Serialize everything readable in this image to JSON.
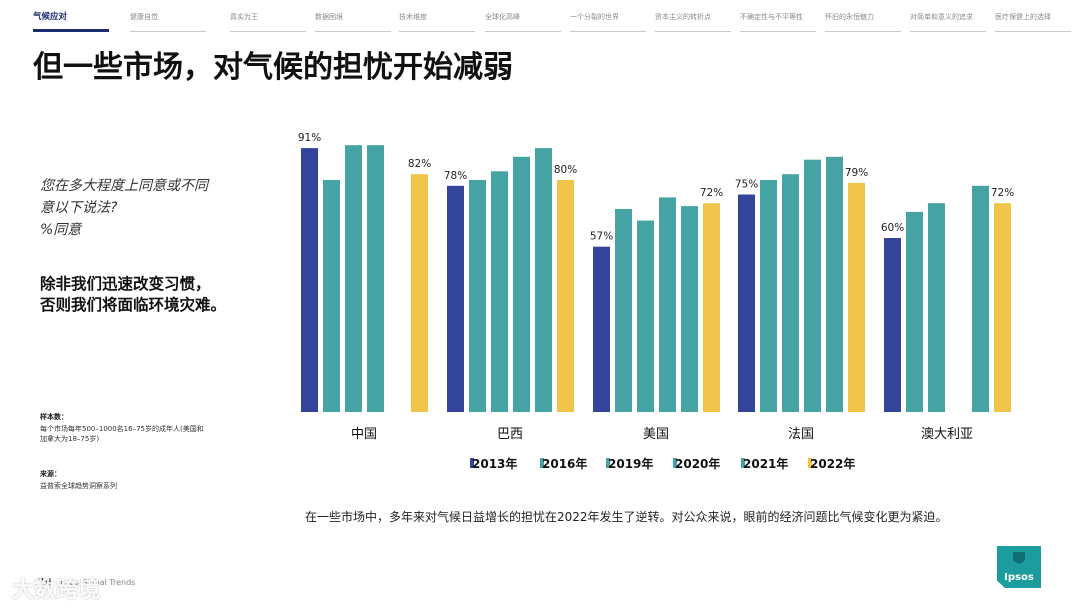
{
  "nav": {
    "items": [
      {
        "label": "气候应对",
        "active": true
      },
      {
        "label": "健康自觉",
        "active": false
      },
      {
        "label": "真实为王",
        "active": false
      },
      {
        "label": "数据困境",
        "active": false
      },
      {
        "label": "技术维度",
        "active": false
      },
      {
        "label": "全球化高峰",
        "active": false
      },
      {
        "label": "一个分裂的世界",
        "active": false
      },
      {
        "label": "资本主义的转折点",
        "active": false
      },
      {
        "label": "不确定性与不平等性",
        "active": false
      },
      {
        "label": "怀旧的永恒魅力",
        "active": false
      },
      {
        "label": "对简单和意义的追求",
        "active": false
      },
      {
        "label": "医疗保健上的选择",
        "active": false
      }
    ]
  },
  "title": "但一些市场，对气候的担忧开始减弱",
  "question": {
    "lines": [
      "您在多大程度上同意或不同",
      "意以下说法?",
      "%同意"
    ]
  },
  "statement": {
    "lines": [
      "除非我们迅速改变习惯，",
      "否则我们将面临环境灾难。"
    ]
  },
  "sample": {
    "label": "样本数：",
    "lines": [
      "每个市场每年500–1000名16–75岁的成年人(美国和",
      "加拿大为18–75岁)"
    ]
  },
  "source": {
    "label": "来源：",
    "text": "益普索全球趋势洞察系列"
  },
  "caption": "在一些市场中，多年来对气候日益增长的担忧在2022年发生了逆转。对公众来说，眼前的经济问题比气候变化更为紧迫。",
  "footer": {
    "page": "24",
    "text": "Ipsos Global Trends",
    "watermark": "大数跨境"
  },
  "logo": {
    "text": "Ipsos"
  },
  "colors": {
    "2013": "#33449a",
    "2016": "#45a3a3",
    "2019": "#45a3a3",
    "2020": "#45a3a3",
    "2021": "#45a3a3",
    "2022": "#f0c34a"
  },
  "chart_data": {
    "type": "bar",
    "title": "",
    "xlabel": "",
    "ylabel": "% 同意",
    "ylim": [
      0,
      100
    ],
    "grid": false,
    "legend_position": "bottom",
    "categories": [
      "中国",
      "巴西",
      "美国",
      "法国",
      "澳大利亚"
    ],
    "series": [
      {
        "name": "2013年",
        "values": [
          91,
          78,
          57,
          75,
          60
        ]
      },
      {
        "name": "2016年",
        "values": [
          80,
          80,
          70,
          80,
          69
        ]
      },
      {
        "name": "2019年",
        "values": [
          92,
          83,
          66,
          82,
          72
        ]
      },
      {
        "name": "2020年",
        "values": [
          92,
          88,
          74,
          87,
          null
        ]
      },
      {
        "name": "2021年",
        "values": [
          null,
          91,
          71,
          88,
          78
        ]
      },
      {
        "name": "2022年",
        "values": [
          82,
          80,
          72,
          79,
          72
        ]
      }
    ],
    "data_labels": [
      {
        "category": "中国",
        "series": "2013年",
        "text": "91%"
      },
      {
        "category": "中国",
        "series": "2022年",
        "text": "82%"
      },
      {
        "category": "巴西",
        "series": "2013年",
        "text": "78%"
      },
      {
        "category": "巴西",
        "series": "2022年",
        "text": "80%"
      },
      {
        "category": "美国",
        "series": "2013年",
        "text": "57%"
      },
      {
        "category": "美国",
        "series": "2022年",
        "text": "72%"
      },
      {
        "category": "法国",
        "series": "2013年",
        "text": "75%"
      },
      {
        "category": "法国",
        "series": "2022年",
        "text": "79%"
      },
      {
        "category": "澳大利亚",
        "series": "2013年",
        "text": "60%"
      },
      {
        "category": "澳大利亚",
        "series": "2022年",
        "text": "72%"
      }
    ]
  }
}
